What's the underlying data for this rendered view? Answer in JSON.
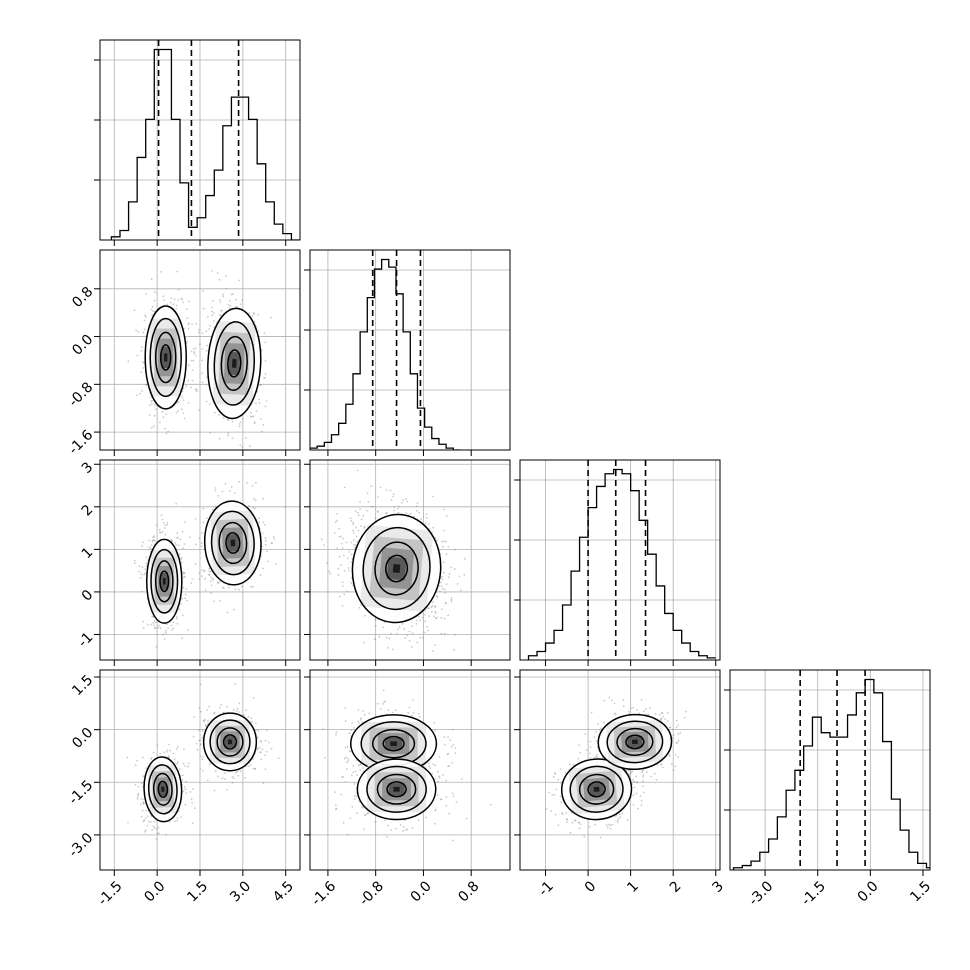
{
  "chart_data": {
    "type": "corner",
    "grid": true,
    "colors": {
      "line": "#000000",
      "grid": "#b0b0b0",
      "points": "#8a8a8a"
    },
    "parameters": [
      {
        "range": [
          -2.0,
          5.0
        ],
        "ticks": [
          "-1.5",
          "0.0",
          "1.5",
          "3.0",
          "4.5"
        ],
        "tick_values": [
          -1.5,
          0.0,
          1.5,
          3.0,
          4.5
        ],
        "quantiles": [
          0.05,
          1.2,
          2.85
        ],
        "histogram": {
          "bin_start": -1.6,
          "bin_width": 0.3,
          "counts": [
            1,
            3,
            12,
            26,
            38,
            60,
            60,
            38,
            18,
            4,
            7,
            14,
            22,
            36,
            45,
            45,
            38,
            24,
            12,
            5,
            2,
            0
          ]
        }
      },
      {
        "range": [
          -1.9,
          1.45
        ],
        "ticks": [
          "-1.6",
          "-0.8",
          "0.0",
          "0.8"
        ],
        "tick_values": [
          -1.6,
          -0.8,
          0.0,
          0.8
        ],
        "quantiles": [
          -0.85,
          -0.45,
          -0.05
        ],
        "histogram": {
          "bin_start": -1.9,
          "bin_width": 0.12,
          "counts": [
            1,
            2,
            4,
            8,
            14,
            24,
            40,
            62,
            80,
            95,
            100,
            96,
            82,
            62,
            40,
            22,
            12,
            6,
            3,
            1,
            0
          ]
        }
      },
      {
        "range": [
          -1.6,
          3.1
        ],
        "ticks": [
          "-1",
          "0",
          "1",
          "2",
          "3"
        ],
        "tick_values": [
          -1,
          0,
          1,
          2,
          3
        ],
        "quantiles": [
          0.0,
          0.65,
          1.35
        ],
        "histogram": {
          "bin_start": -1.4,
          "bin_width": 0.2,
          "counts": [
            2,
            4,
            8,
            14,
            26,
            42,
            58,
            72,
            82,
            88,
            90,
            88,
            80,
            66,
            50,
            35,
            22,
            14,
            8,
            4,
            2,
            1
          ]
        }
      },
      {
        "range": [
          -4.0,
          1.7
        ],
        "ticks": [
          "-3.0",
          "-1.5",
          "0.0",
          "1.5"
        ],
        "tick_values": [
          -3.0,
          -1.5,
          0.0,
          1.5
        ],
        "quantiles": [
          -2.0,
          -0.95,
          -0.15
        ],
        "histogram": {
          "bin_start": -3.9,
          "bin_width": 0.25,
          "counts": [
            1,
            2,
            4,
            8,
            14,
            24,
            36,
            45,
            56,
            69,
            62,
            60,
            60,
            70,
            80,
            86,
            80,
            58,
            32,
            18,
            8,
            3,
            1
          ]
        }
      }
    ],
    "panels": [
      {
        "row": 1,
        "col": 0,
        "clusters": [
          {
            "center": [
              0.3,
              -0.35
            ],
            "sigma": [
              0.35,
              0.42
            ],
            "rho": 0.0,
            "n": 520
          },
          {
            "center": [
              2.7,
              -0.45
            ],
            "sigma": [
              0.45,
              0.45
            ],
            "rho": -0.1,
            "n": 520
          }
        ],
        "contour_levels": [
          0.5,
          1.0,
          1.55,
          2.05
        ]
      },
      {
        "row": 2,
        "col": 0,
        "clusters": [
          {
            "center": [
              0.25,
              0.25
            ],
            "sigma": [
              0.3,
              0.48
            ],
            "rho": 0.0,
            "n": 520
          },
          {
            "center": [
              2.65,
              1.15
            ],
            "sigma": [
              0.48,
              0.48
            ],
            "rho": 0.1,
            "n": 520
          }
        ],
        "contour_levels": [
          0.5,
          1.0,
          1.55,
          2.05
        ]
      },
      {
        "row": 2,
        "col": 1,
        "clusters": [
          {
            "center": [
              -0.45,
              0.55
            ],
            "sigma": [
              0.36,
              0.62
            ],
            "rho": -0.2,
            "n": 1040
          }
        ],
        "contour_levels": [
          0.5,
          1.0,
          1.55,
          2.05
        ]
      },
      {
        "row": 3,
        "col": 0,
        "clusters": [
          {
            "center": [
              0.2,
              -1.7
            ],
            "sigma": [
              0.32,
              0.45
            ],
            "rho": 0.1,
            "n": 520
          },
          {
            "center": [
              2.55,
              -0.35
            ],
            "sigma": [
              0.45,
              0.4
            ],
            "rho": 0.0,
            "n": 520
          }
        ],
        "contour_levels": [
          0.5,
          1.0,
          1.55,
          2.05
        ]
      },
      {
        "row": 3,
        "col": 1,
        "clusters": [
          {
            "center": [
              -0.5,
              -0.4
            ],
            "sigma": [
              0.35,
              0.4
            ],
            "rho": 0.0,
            "n": 520
          },
          {
            "center": [
              -0.45,
              -1.7
            ],
            "sigma": [
              0.32,
              0.42
            ],
            "rho": 0.0,
            "n": 520
          }
        ],
        "contour_levels": [
          0.5,
          1.0,
          1.55,
          2.05
        ]
      },
      {
        "row": 3,
        "col": 2,
        "clusters": [
          {
            "center": [
              0.2,
              -1.7
            ],
            "sigma": [
              0.4,
              0.42
            ],
            "rho": 0.2,
            "n": 520
          },
          {
            "center": [
              1.1,
              -0.35
            ],
            "sigma": [
              0.42,
              0.38
            ],
            "rho": 0.1,
            "n": 520
          }
        ],
        "contour_levels": [
          0.5,
          1.0,
          1.55,
          2.05
        ]
      }
    ]
  }
}
